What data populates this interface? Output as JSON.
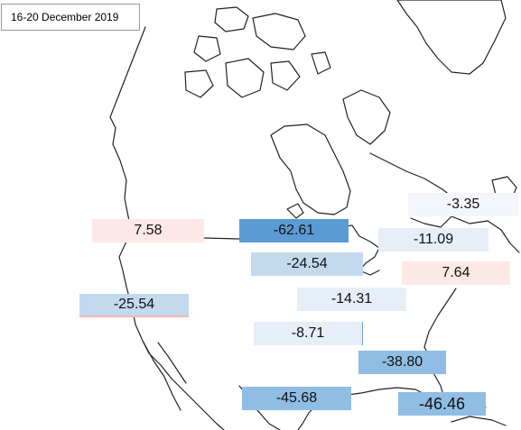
{
  "title": "16-20  December 2019",
  "colors": {
    "positive": "#fde8e8",
    "negative_light": "#e6eef8",
    "negative_medium": "#c2d9ee",
    "negative_dark": "#8fbde3",
    "negative_darkest": "#5b9bd5",
    "map_line": "#222222"
  },
  "regions": [
    {
      "value": "7.58"
    },
    {
      "value": "-62.61"
    },
    {
      "value": "-3.35"
    },
    {
      "value": "-11.09"
    },
    {
      "value": "-24.54"
    },
    {
      "value": "7.64"
    },
    {
      "value": "-14.31"
    },
    {
      "value": "-25.54"
    },
    {
      "value": "-8.71"
    },
    {
      "value": "-38.80"
    },
    {
      "value": "-45.68"
    },
    {
      "value": "-46.46"
    }
  ]
}
